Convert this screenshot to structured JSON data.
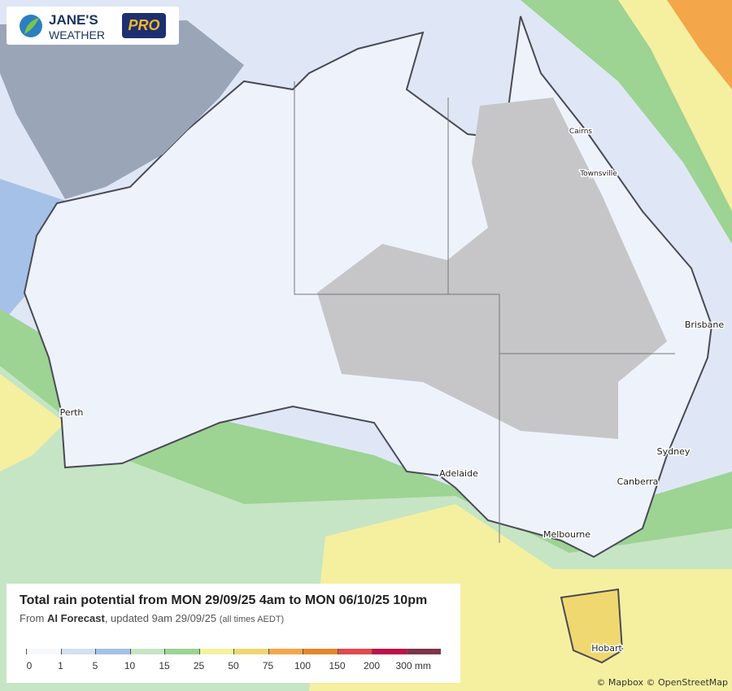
{
  "logo": {
    "line1": "JANE'S",
    "line2": "WEATHER",
    "badge": "PRO"
  },
  "cities": [
    "Cairns",
    "Townsville",
    "Brisbane",
    "Perth",
    "Sydney",
    "Adelaide",
    "Canberra",
    "Melbourne",
    "Hobart"
  ],
  "legend": {
    "title": "Total rain potential from MON 29/09/25 4am to MON 06/10/25 10pm",
    "subtitle": {
      "prefix": "From",
      "source": "AI Forecast",
      "updated": ", updated 9am 29/09/25",
      "note": "(all times AEDT)"
    },
    "labels": [
      "0",
      "1",
      "5",
      "10",
      "15",
      "25",
      "50",
      "75",
      "100",
      "150",
      "200",
      "300 mm"
    ],
    "colors": [
      "#f6f8fd",
      "#d3dff3",
      "#a6c1e7",
      "#c6e5c4",
      "#9dd393",
      "#f5f0a0",
      "#eed773",
      "#f4a64a",
      "#e5862a",
      "#e04a4a",
      "#c0104a",
      "#7e3448"
    ]
  },
  "attribution": "© Mapbox © OpenStreetMap"
}
